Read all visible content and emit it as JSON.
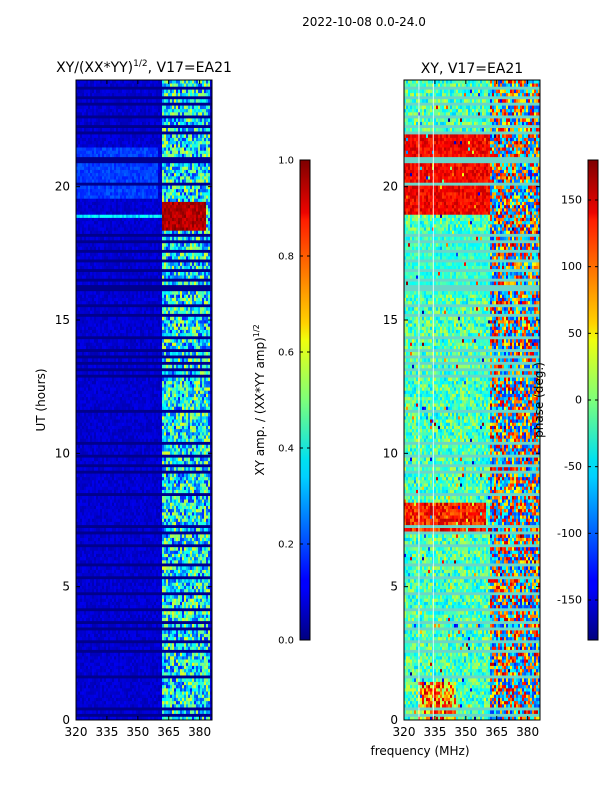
{
  "figure": {
    "suptitle": "2022-10-08 0.0-24.0",
    "xlabel_shared": "frequency (MHz)"
  },
  "chart_data": [
    {
      "type": "heatmap",
      "panel": "left",
      "title_main": "XY/(XX*YY)",
      "title_sup": "1/2",
      "title_suffix": ", V17=EA21",
      "ylabel": "UT (hours)",
      "xlim": [
        320,
        386
      ],
      "ylim": [
        0,
        24
      ],
      "xticks": [
        320,
        335,
        350,
        365,
        380
      ],
      "yticks": [
        0,
        5,
        10,
        15,
        20
      ],
      "colormap": "jet",
      "colorbar": {
        "label_main": "XY amp. / (XX*YY amp)",
        "label_sup": "1/2",
        "range": [
          0.0,
          1.0
        ],
        "ticks": [
          "0.0",
          "0.2",
          "0.4",
          "0.6",
          "0.8",
          "1.0"
        ]
      }
    },
    {
      "type": "heatmap",
      "panel": "right",
      "title": "XY, V17=EA21",
      "xlim": [
        320,
        386
      ],
      "ylim": [
        0,
        24
      ],
      "xticks": [
        320,
        335,
        350,
        365,
        380
      ],
      "yticks": [
        0,
        5,
        10,
        15,
        20
      ],
      "colormap": "jet",
      "colorbar": {
        "label": "phase (deg.)",
        "range": [
          -180,
          180
        ],
        "ticks": [
          -150,
          -100,
          -50,
          0,
          50,
          100,
          150
        ]
      }
    }
  ]
}
